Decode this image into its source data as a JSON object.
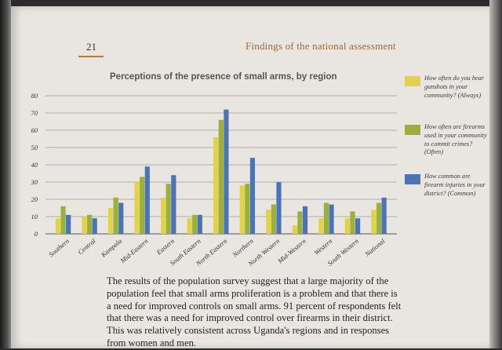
{
  "header": {
    "page_number": "21",
    "section_title": "Findings of the national assessment"
  },
  "colors": {
    "always": "#e2d24a",
    "often": "#9aaf3c",
    "common": "#4c74b4",
    "accent": "#c8772a"
  },
  "chart_data": {
    "type": "bar",
    "title": "Perceptions of the presence of small arms, by region",
    "categories": [
      "Southern",
      "Central",
      "Kampala",
      "Mid-Eastern",
      "Eastern",
      "South Eastern",
      "North Eastern",
      "Northern",
      "North Western",
      "Mid-Western",
      "Western",
      "South Western",
      "National"
    ],
    "series": [
      {
        "name": "How often do you hear gunshots in your community? (Always)",
        "values": [
          9,
          10,
          15,
          30,
          21,
          9,
          56,
          28,
          14,
          5,
          9,
          9,
          14
        ]
      },
      {
        "name": "How often are firearms used in your community to commit crimes? (Often)",
        "values": [
          16,
          11,
          21,
          33,
          29,
          11,
          66,
          29,
          17,
          13,
          18,
          13,
          18
        ]
      },
      {
        "name": "How common are firearm injuries in your district? (Common)",
        "values": [
          11,
          9,
          18,
          39,
          34,
          11,
          72,
          44,
          30,
          16,
          17,
          9,
          21
        ]
      }
    ],
    "ylim": [
      0,
      80
    ],
    "yticks": [
      "0",
      "10",
      "20",
      "30",
      "40",
      "50",
      "60",
      "70",
      "80"
    ],
    "grid": true,
    "legend": "right"
  },
  "legend": [
    {
      "text": "How often do you hear gunshots in your community? (Always)"
    },
    {
      "text": "How often are firearms used in your community to commit crimes? (Often)"
    },
    {
      "text": "How common are firearm injuries in your district? (Common)"
    }
  ],
  "body_text": "The results of the population survey suggest that a large majority of the population feel that small arms proliferation is a problem and that there is a need for improved controls on small arms. 91 percent of respondents felt that there was a need for improved control over firearms in their district. This was relatively consistent across Uganda's regions and in responses from women and men."
}
